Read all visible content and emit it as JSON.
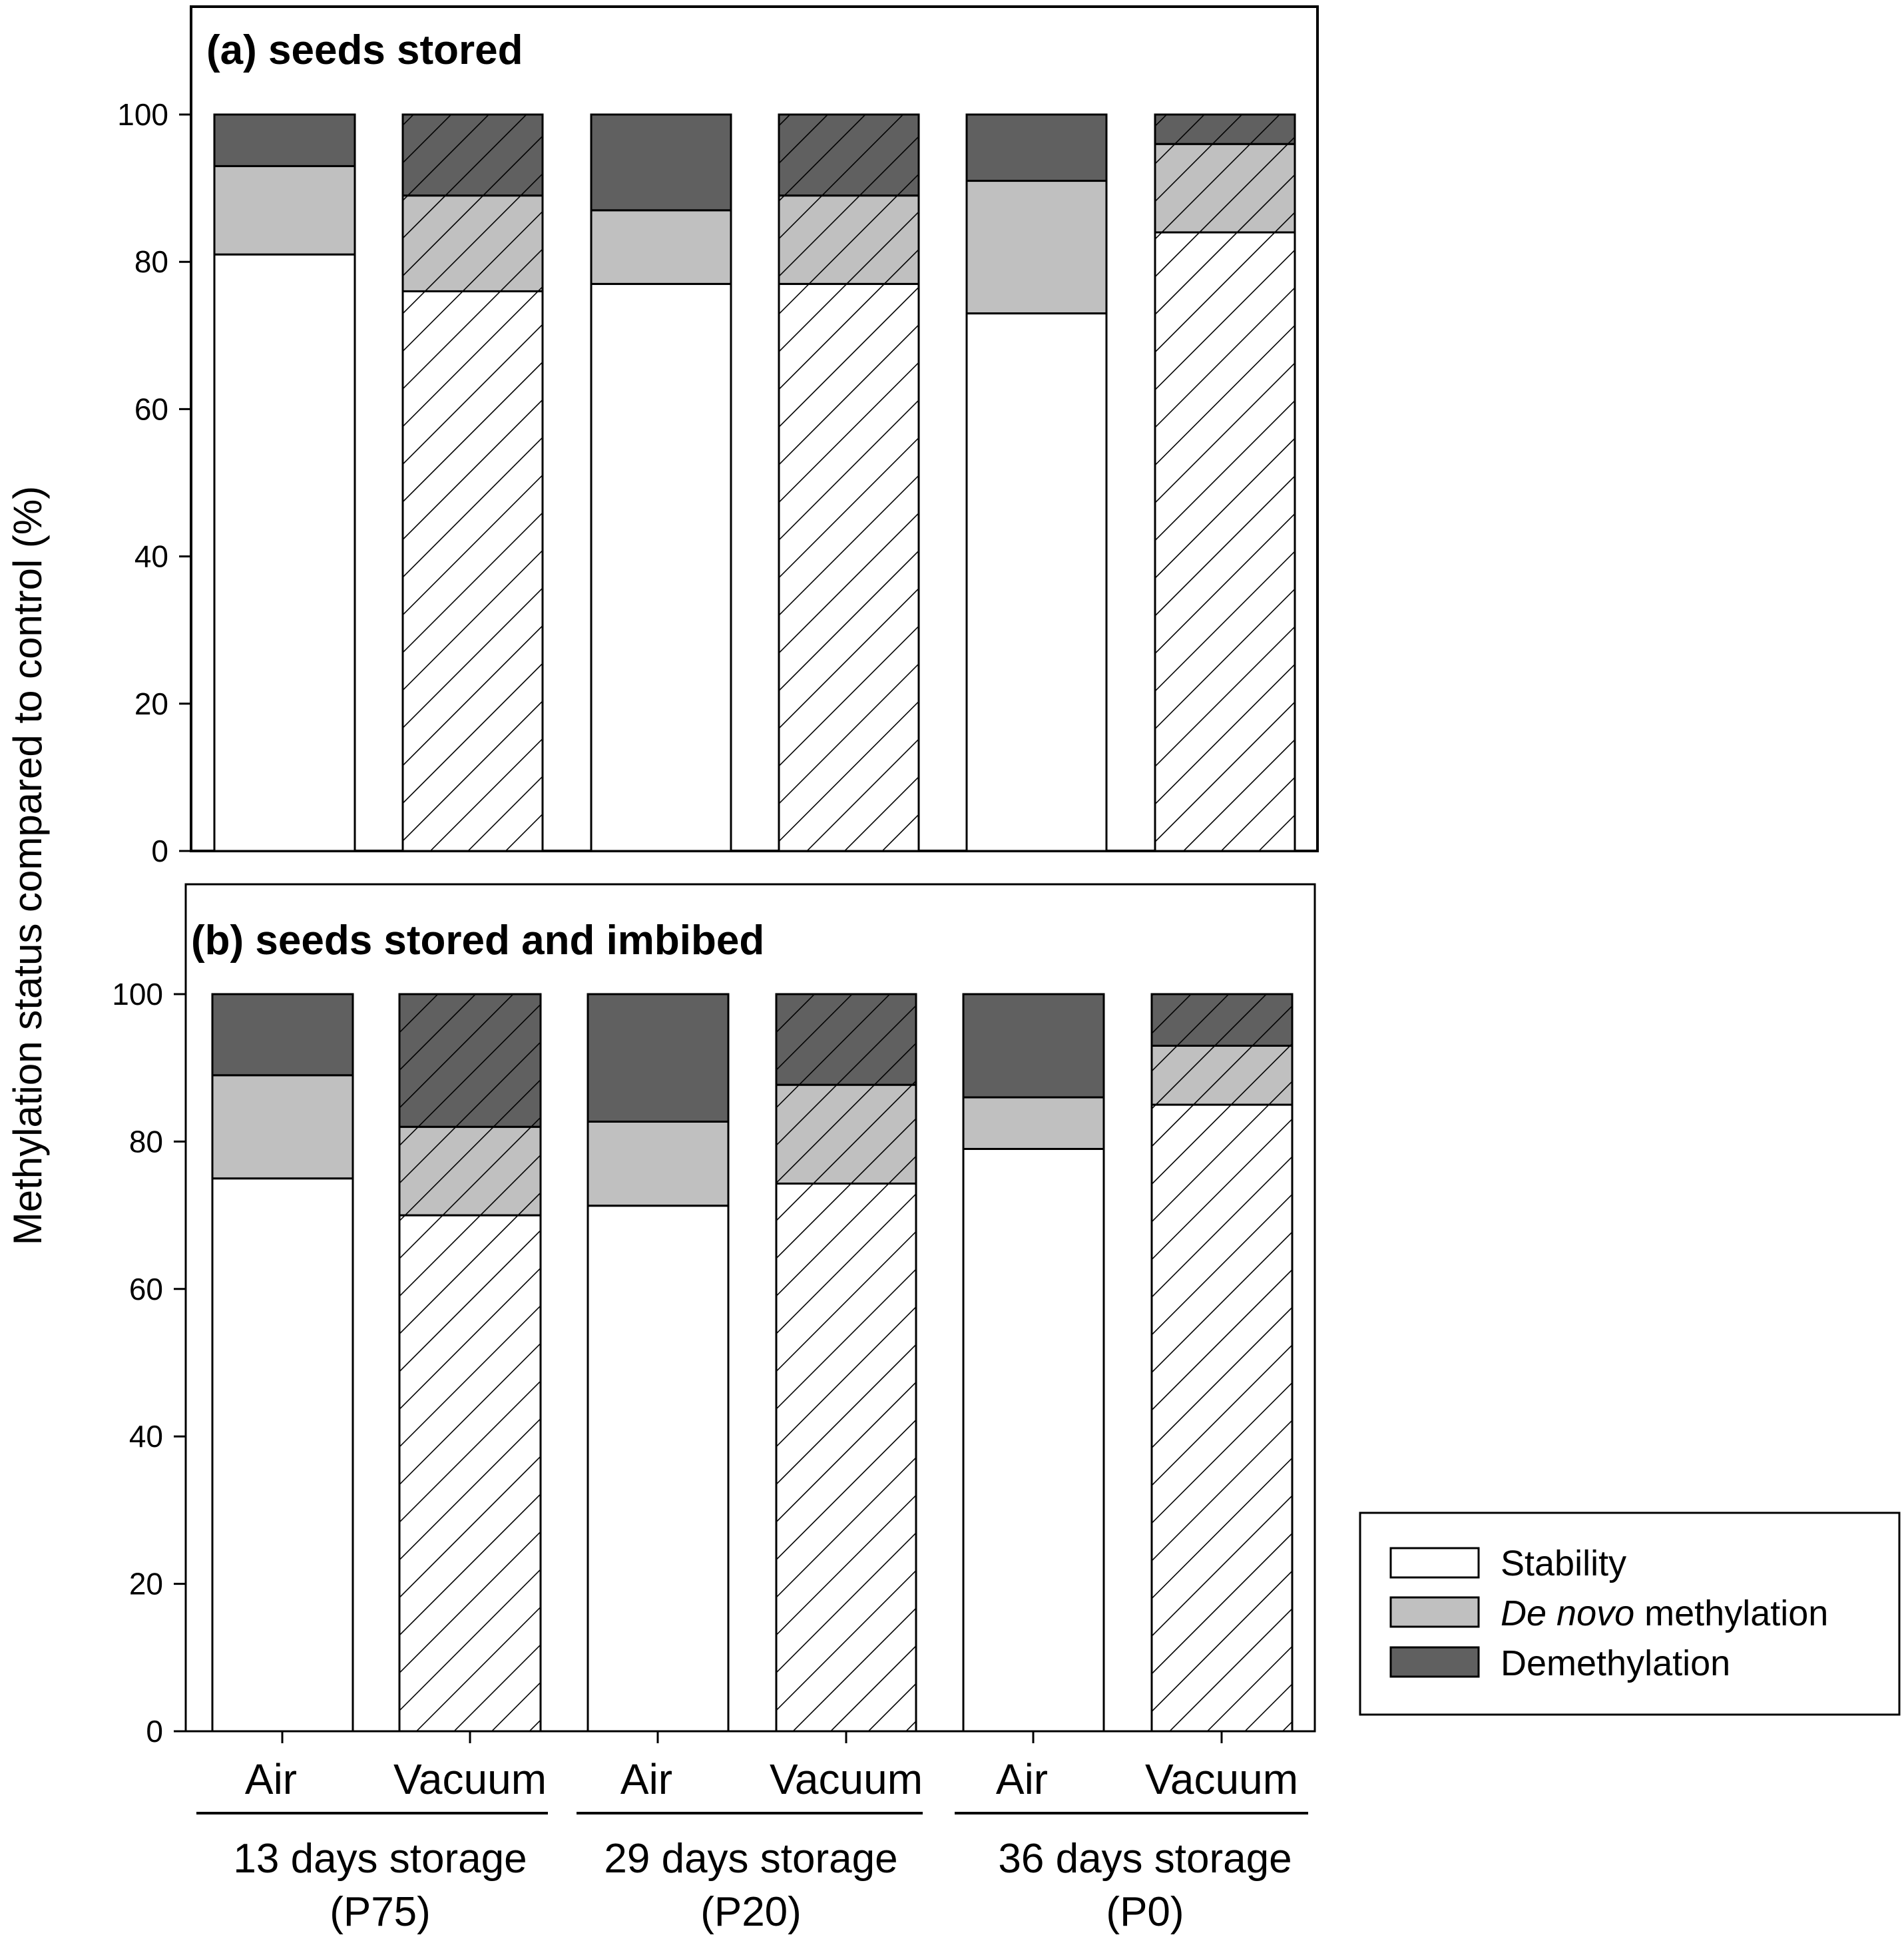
{
  "chart_data": [
    {
      "type": "bar",
      "stacked": true,
      "title": "(a) seeds stored",
      "ylabel": "Methylation status compared to control (%)",
      "ylim": [
        0,
        100
      ],
      "yticks": [
        0,
        20,
        40,
        60,
        80,
        100
      ],
      "categories": [
        "Air",
        "Vacuum",
        "Air",
        "Vacuum",
        "Air",
        "Vacuum"
      ],
      "hatched": [
        false,
        true,
        false,
        true,
        false,
        true
      ],
      "series": [
        {
          "name": "Stability",
          "values": [
            81,
            76,
            77,
            77,
            73,
            84
          ]
        },
        {
          "name": "De novo methylation",
          "values": [
            12,
            13,
            10,
            12,
            18,
            12
          ]
        },
        {
          "name": "Demethylation",
          "values": [
            7,
            11,
            13,
            11,
            9,
            4
          ]
        }
      ]
    },
    {
      "type": "bar",
      "stacked": true,
      "title": "(b) seeds stored and imbibed",
      "ylabel": "Methylation status compared to control (%)",
      "ylim": [
        0,
        100
      ],
      "yticks": [
        0,
        20,
        40,
        60,
        80,
        100
      ],
      "categories": [
        "Air",
        "Vacuum",
        "Air",
        "Vacuum",
        "Air",
        "Vacuum"
      ],
      "hatched": [
        false,
        true,
        false,
        true,
        false,
        true
      ],
      "series": [
        {
          "name": "Stability",
          "values": [
            75,
            70,
            71.3,
            74.3,
            79,
            85
          ]
        },
        {
          "name": "De novo methylation",
          "values": [
            14,
            12,
            11.4,
            13.4,
            7,
            8
          ]
        },
        {
          "name": "Demethylation",
          "values": [
            11,
            18,
            17.3,
            12.3,
            14,
            7
          ]
        }
      ]
    }
  ],
  "x_categories": [
    "Air",
    "Vacuum",
    "Air",
    "Vacuum",
    "Air",
    "Vacuum"
  ],
  "groups": [
    {
      "line1": "13 days storage",
      "line2": "(P75)"
    },
    {
      "line1": "29 days storage",
      "line2": "(P20)"
    },
    {
      "line1": "36 days storage",
      "line2": "(P0)"
    }
  ],
  "legend": {
    "items": [
      {
        "label": "Stability",
        "color": "#ffffff"
      },
      {
        "label_italic": "De novo",
        "label_rest": " methylation",
        "color": "#c0c0c0"
      },
      {
        "label": "Demethylation",
        "color": "#606060"
      }
    ]
  },
  "colors": {
    "stability": "#ffffff",
    "denovo": "#c0c0c0",
    "demethylation": "#606060",
    "axis": "#000000"
  }
}
